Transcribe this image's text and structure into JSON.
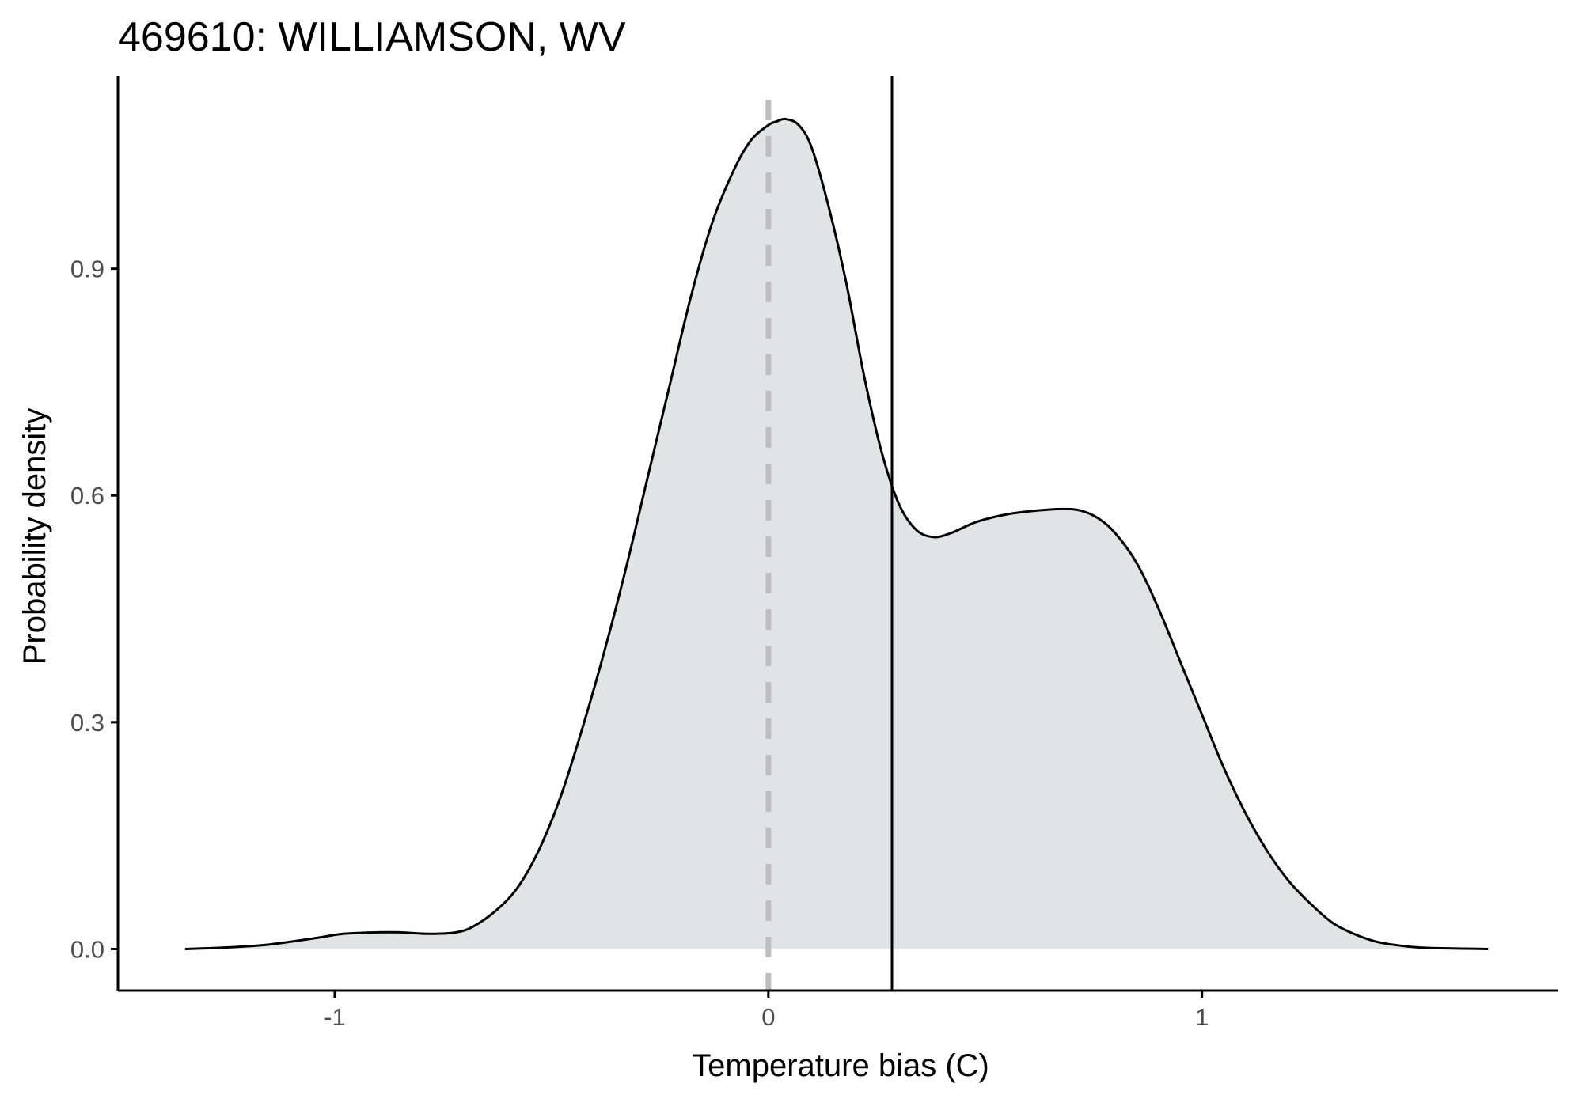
{
  "chart_data": {
    "type": "area",
    "title": "469610: WILLIAMSON, WV",
    "xlabel": "Temperature bias (C)",
    "ylabel": "Probability density",
    "xlim": [
      -1.5,
      1.82
    ],
    "ylim": [
      -0.055,
      1.155
    ],
    "x_ticks": [
      -1,
      0,
      1
    ],
    "x_tick_labels": [
      "-1",
      "0",
      "1"
    ],
    "y_ticks": [
      0.0,
      0.3,
      0.6,
      0.9
    ],
    "y_tick_labels": [
      "0.0",
      "0.3",
      "0.6",
      "0.9"
    ],
    "grid": false,
    "legend": "none",
    "reference_lines": {
      "zero_line_x": 0,
      "mean_line_x": 0.285
    },
    "series": [
      {
        "x": [
          -1.345,
          -1.25,
          -1.15,
          -1.05,
          -0.98,
          -0.9,
          -0.85,
          -0.78,
          -0.72,
          -0.68,
          -0.63,
          -0.58,
          -0.53,
          -0.48,
          -0.43,
          -0.38,
          -0.33,
          -0.28,
          -0.23,
          -0.18,
          -0.13,
          -0.08,
          -0.04,
          0.0,
          0.02,
          0.04,
          0.07,
          0.1,
          0.14,
          0.18,
          0.22,
          0.26,
          0.3,
          0.34,
          0.38,
          0.42,
          0.48,
          0.55,
          0.62,
          0.68,
          0.72,
          0.76,
          0.8,
          0.85,
          0.9,
          0.95,
          1.0,
          1.05,
          1.1,
          1.15,
          1.2,
          1.25,
          1.3,
          1.35,
          1.4,
          1.45,
          1.5,
          1.55,
          1.6,
          1.66
        ],
        "y": [
          0.0,
          0.002,
          0.006,
          0.014,
          0.02,
          0.022,
          0.022,
          0.02,
          0.022,
          0.03,
          0.05,
          0.08,
          0.13,
          0.2,
          0.29,
          0.39,
          0.5,
          0.62,
          0.74,
          0.86,
          0.96,
          1.03,
          1.07,
          1.09,
          1.095,
          1.098,
          1.09,
          1.06,
          0.98,
          0.88,
          0.76,
          0.66,
          0.59,
          0.555,
          0.545,
          0.55,
          0.565,
          0.575,
          0.58,
          0.582,
          0.58,
          0.57,
          0.55,
          0.51,
          0.45,
          0.38,
          0.31,
          0.24,
          0.18,
          0.13,
          0.09,
          0.06,
          0.035,
          0.02,
          0.01,
          0.005,
          0.002,
          0.001,
          0.0005,
          0.0
        ]
      }
    ],
    "colors": {
      "fill": "#e1e4e5",
      "line": "#000000",
      "zero_line": "#bebebe",
      "mean_line": "#000000",
      "axis": "#000000",
      "tick_label": "#4d4d4d"
    }
  }
}
